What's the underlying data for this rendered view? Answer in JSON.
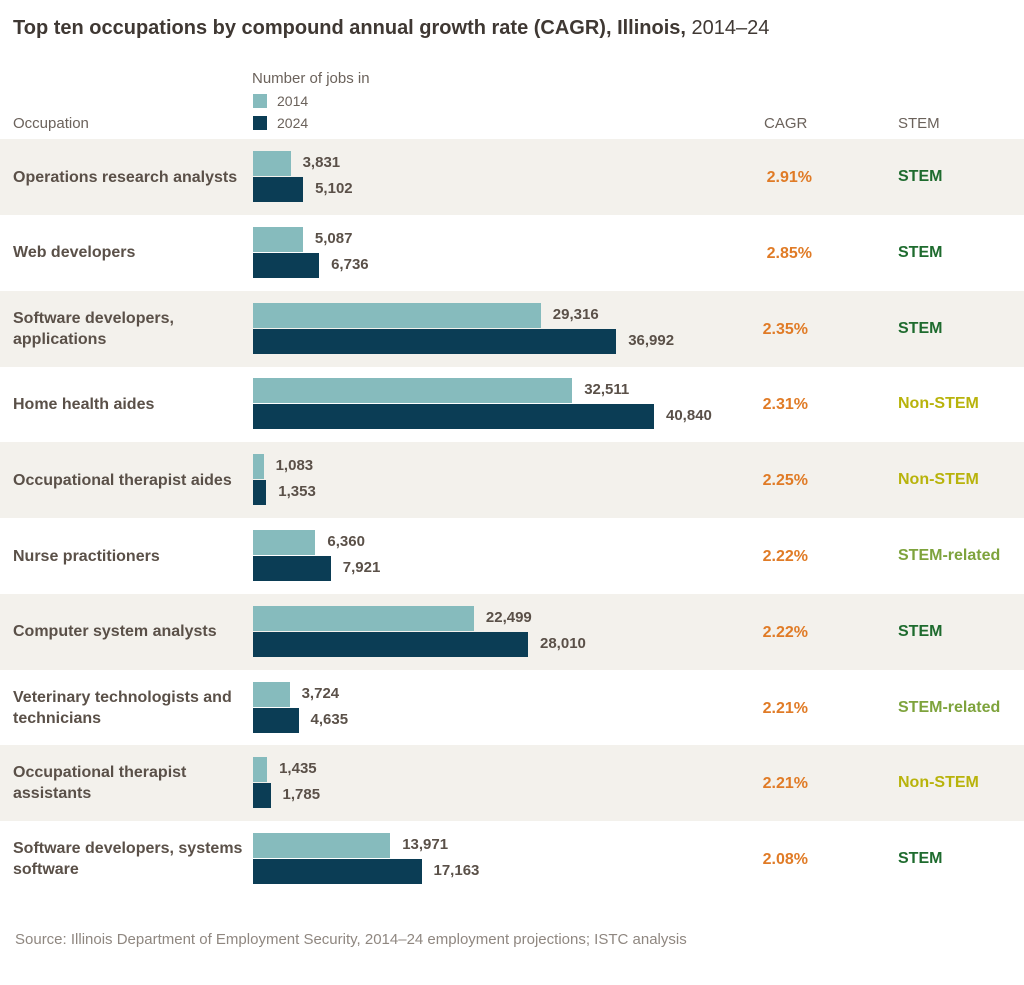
{
  "title": {
    "bold": "Top ten occupations by compound annual growth rate (CAGR), Illinois,",
    "regular": "2014–24"
  },
  "headers": {
    "occupation": "Occupation",
    "jobs": "Number of jobs in",
    "cagr": "CAGR",
    "stem": "STEM"
  },
  "legend": [
    {
      "label": "2014",
      "color": "#86bbbd"
    },
    {
      "label": "2024",
      "color": "#0b3d55"
    }
  ],
  "stem_colors": {
    "STEM": "#1e6b2e",
    "Non-STEM": "#b8b30b",
    "STEM-related": "#7ea33c"
  },
  "chart_data": {
    "type": "bar",
    "orientation": "horizontal",
    "categories": [
      "Operations research analysts",
      "Web developers",
      "Software developers, applications",
      "Home health aides",
      "Occupational therapist aides",
      "Nurse practitioners",
      "Computer system analysts",
      "Veterinary technologists and technicians",
      "Occupational therapist assistants",
      "Software developers, systems software"
    ],
    "series": [
      {
        "name": "2014",
        "color": "#86bbbd",
        "values": [
          3831,
          5087,
          29316,
          32511,
          1083,
          6360,
          22499,
          3724,
          1435,
          13971
        ],
        "labels": [
          "3,831",
          "5,087",
          "29,316",
          "32,511",
          "1,083",
          "6,360",
          "22,499",
          "3,724",
          "1,435",
          "13,971"
        ]
      },
      {
        "name": "2024",
        "color": "#0b3d55",
        "values": [
          5102,
          6736,
          36992,
          40840,
          1353,
          7921,
          28010,
          4635,
          1785,
          17163
        ],
        "labels": [
          "5,102",
          "6,736",
          "36,992",
          "40,840",
          "1,353",
          "7,921",
          "28,010",
          "4,635",
          "1,785",
          "17,163"
        ]
      }
    ],
    "cagr": [
      "2.91%",
      "2.85%",
      "2.35%",
      "2.31%",
      "2.25%",
      "2.22%",
      "2.22%",
      "2.21%",
      "2.21%",
      "2.08%"
    ],
    "stem": [
      "STEM",
      "STEM",
      "STEM",
      "Non-STEM",
      "Non-STEM",
      "STEM-related",
      "STEM",
      "STEM-related",
      "Non-STEM",
      "STEM"
    ],
    "xlim": [
      0,
      40840
    ]
  },
  "source": "Source: Illinois Department of Employment Security, 2014–24 employment projections; ISTC analysis"
}
